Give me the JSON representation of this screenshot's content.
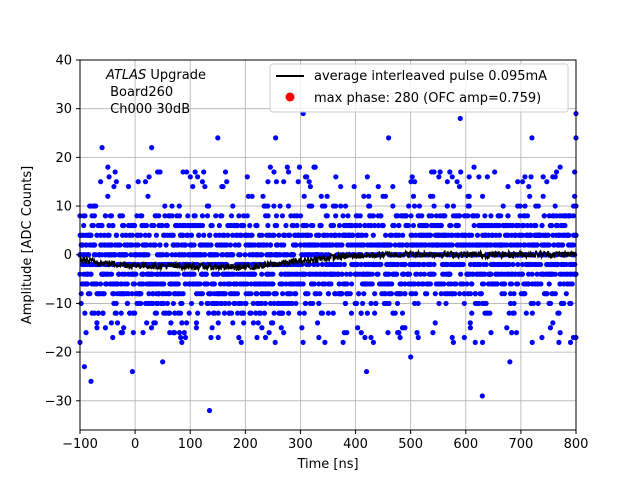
{
  "chart_data": {
    "type": "scatter",
    "xlabel": "Time [ns]",
    "ylabel": "Amplitude [ADC Counts]",
    "xlim": [
      -100,
      800
    ],
    "ylim": [
      -36,
      40
    ],
    "xticks": [
      -100,
      0,
      100,
      200,
      300,
      400,
      500,
      600,
      700,
      800
    ],
    "yticks": [
      -30,
      -20,
      -10,
      0,
      10,
      20,
      30,
      40
    ],
    "grid": true,
    "legend_position": "top-right",
    "annotation": {
      "italic": "ATLAS",
      "line1_rest": " Upgrade",
      "line2": " Board260",
      "line3": " Ch000 30dB"
    },
    "series": [
      {
        "name": "average interleaved pulse 0.095mA",
        "kind": "line",
        "color": "#000000",
        "x": [
          -100,
          -50,
          0,
          50,
          100,
          150,
          200,
          250,
          300,
          350,
          400,
          450,
          500,
          550,
          600,
          650,
          700,
          750,
          800
        ],
        "y": [
          -1.0,
          -1.8,
          -2.2,
          -2.3,
          -2.4,
          -2.5,
          -2.6,
          -2.0,
          -1.3,
          -0.6,
          -0.2,
          0.0,
          0.1,
          0.1,
          0.0,
          0.0,
          0.1,
          0.1,
          0.1
        ]
      },
      {
        "name": "max phase: 280 (OFC amp=0.759)",
        "kind": "scatter",
        "color": "#0000ff",
        "level_values": [
          -14,
          -12,
          -10,
          -8,
          -6,
          -4,
          -2,
          0,
          2,
          4,
          6,
          8,
          10,
          12
        ],
        "outliers": [
          {
            "x": -92,
            "y": -23
          },
          {
            "x": -80,
            "y": -26
          },
          {
            "x": -5,
            "y": -24
          },
          {
            "x": 135,
            "y": -32
          },
          {
            "x": 630,
            "y": -29
          },
          {
            "x": 305,
            "y": 29
          },
          {
            "x": 590,
            "y": 28
          },
          {
            "x": 255,
            "y": 24
          },
          {
            "x": 720,
            "y": 24
          },
          {
            "x": 800,
            "y": 24
          },
          {
            "x": 800,
            "y": 29
          },
          {
            "x": 460,
            "y": 24
          },
          {
            "x": 150,
            "y": 24
          },
          {
            "x": -60,
            "y": 22
          },
          {
            "x": 30,
            "y": 22
          },
          {
            "x": 420,
            "y": -24
          },
          {
            "x": 500,
            "y": -21
          },
          {
            "x": 680,
            "y": -22
          },
          {
            "x": 790,
            "y": -18
          },
          {
            "x": 50,
            "y": -22
          }
        ]
      }
    ],
    "legend": [
      {
        "label": "average interleaved pulse 0.095mA",
        "marker": "line",
        "color": "#000000"
      },
      {
        "label": "max phase: 280 (OFC amp=0.759)",
        "marker": "dot",
        "color": "#ff0000"
      }
    ]
  }
}
